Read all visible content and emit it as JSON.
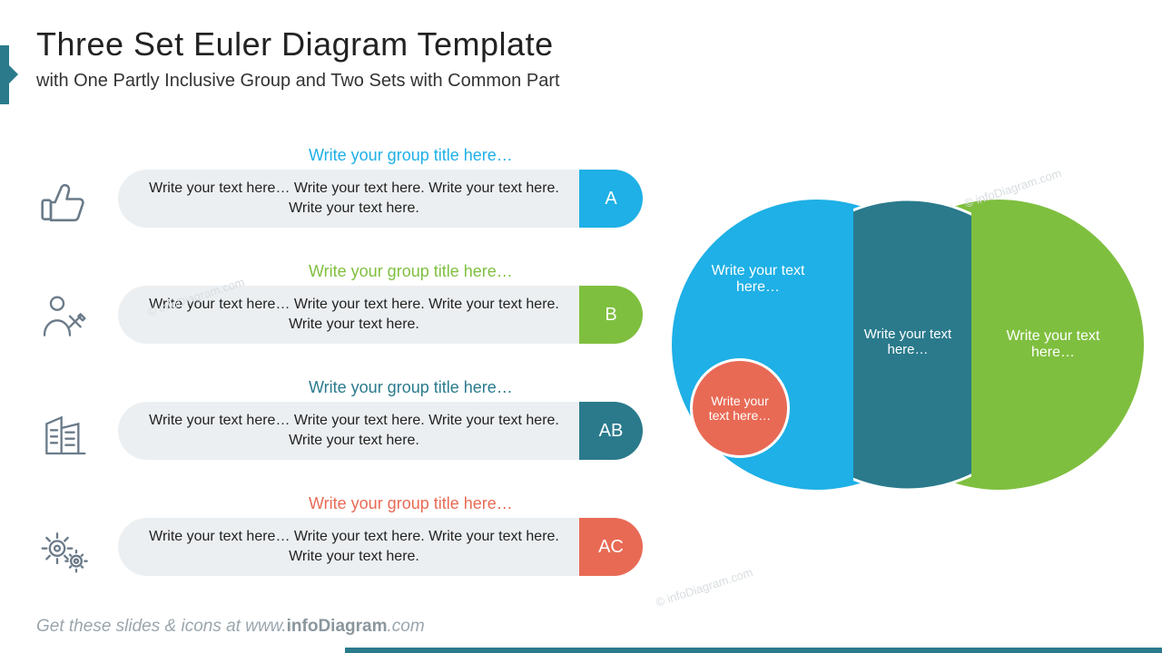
{
  "colors": {
    "A": "#1eb0e6",
    "B": "#7fbf3f",
    "AB": "#2a7a8c",
    "AC": "#e86a55",
    "pill_bg": "#eceff1",
    "icon": "#6a7a88",
    "accent": "#2a7a8c"
  },
  "header": {
    "title": "Three Set Euler Diagram Template",
    "subtitle": "with One Partly Inclusive Group and Two Sets with Common Part"
  },
  "rows": [
    {
      "key": "A",
      "group_title": "Write your group title here…",
      "title_color": "#1eb0e6",
      "text": "Write your text here… Write your text here. Write your text here. Write your text here.",
      "badge": "A",
      "badge_color": "#1eb0e6",
      "icon": "thumbs-up"
    },
    {
      "key": "B",
      "group_title": "Write your group title here…",
      "title_color": "#7fbf3f",
      "text": "Write your text here… Write your text here. Write your text here. Write your text here.",
      "badge": "B",
      "badge_color": "#7fbf3f",
      "icon": "person-tools"
    },
    {
      "key": "AB",
      "group_title": "Write your group title here…",
      "title_color": "#2a7a8c",
      "text": "Write your text here… Write your text here. Write your text here. Write your text here.",
      "badge": "AB",
      "badge_color": "#2a7a8c",
      "icon": "buildings"
    },
    {
      "key": "AC",
      "group_title": "Write your group title here…",
      "title_color": "#e86a55",
      "text": "Write your text here… Write your text here. Write your text here. Write your text here.",
      "badge": "AC",
      "badge_color": "#e86a55",
      "icon": "gears"
    }
  ],
  "euler": {
    "A_label": "Write your text here…",
    "B_label": "Write your text here…",
    "AB_label": "Write your text here…",
    "AC_label": "Write your text here…",
    "A_color": "#1eb0e6",
    "B_color": "#7fbf3f",
    "AB_color": "#2a7a8c",
    "AC_color": "#e86a55"
  },
  "footer": {
    "prefix": "Get these slides & icons at www.",
    "bold": "infoDiagram",
    "suffix": ".com"
  },
  "watermark": "© infoDiagram.com"
}
